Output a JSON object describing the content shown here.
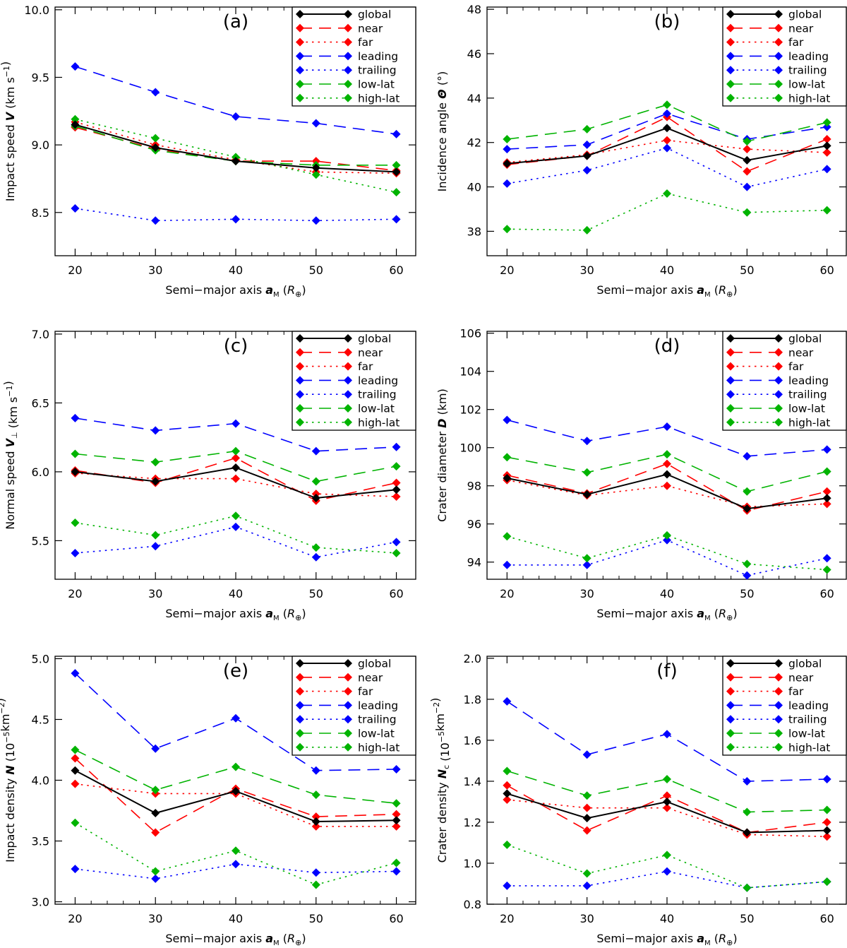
{
  "figure": {
    "x_values": [
      20,
      30,
      40,
      50,
      60
    ]
  },
  "series_styles": [
    {
      "key": "global",
      "color": "#000000",
      "dash": "solid"
    },
    {
      "key": "near",
      "color": "#ff0000",
      "dash": "dashed"
    },
    {
      "key": "far",
      "color": "#ff0000",
      "dash": "dotted"
    },
    {
      "key": "leading",
      "color": "#0000ff",
      "dash": "dashed"
    },
    {
      "key": "trailing",
      "color": "#0000ff",
      "dash": "dotted"
    },
    {
      "key": "low-lat",
      "color": "#00b300",
      "dash": "dashed"
    },
    {
      "key": "high-lat",
      "color": "#00b300",
      "dash": "dotted"
    }
  ],
  "chart_data": [
    {
      "type": "line",
      "panel": "(a)",
      "xlabel": {
        "main": "Semi−major axis ",
        "var": "a",
        "sub": "M",
        "unit_open": " (",
        "unit_var": "R",
        "unit_sub": "⊕",
        "unit_close": ")"
      },
      "ylabel": {
        "pre": "Impact speed ",
        "var": "V",
        "post": " (km s",
        "sup": "−1",
        "post2": ")"
      },
      "xlim": [
        17.5,
        62.5
      ],
      "ylim": [
        8.18,
        10.02
      ],
      "xticks": [
        "20",
        "30",
        "40",
        "50",
        "60"
      ],
      "yticks": [
        {
          "v": 8.5,
          "label": "8.5"
        },
        {
          "v": 9.0,
          "label": "9.0"
        },
        {
          "v": 9.5,
          "label": "9.5"
        },
        {
          "v": 10.0,
          "label": "10.0"
        }
      ],
      "x": [
        20,
        30,
        40,
        50,
        60
      ],
      "series": [
        {
          "name": "global",
          "values": [
            9.15,
            8.98,
            8.88,
            8.83,
            8.8
          ]
        },
        {
          "name": "near",
          "values": [
            9.13,
            8.97,
            8.88,
            8.88,
            8.81
          ]
        },
        {
          "name": "far",
          "values": [
            9.17,
            9.0,
            8.89,
            8.8,
            8.79
          ]
        },
        {
          "name": "leading",
          "values": [
            9.58,
            9.39,
            9.21,
            9.16,
            9.08
          ]
        },
        {
          "name": "trailing",
          "values": [
            8.53,
            8.44,
            8.45,
            8.44,
            8.45
          ]
        },
        {
          "name": "low-lat",
          "values": [
            9.14,
            8.96,
            8.88,
            8.85,
            8.85
          ]
        },
        {
          "name": "high-lat",
          "values": [
            9.19,
            9.05,
            8.91,
            8.78,
            8.65
          ]
        }
      ]
    },
    {
      "type": "line",
      "panel": "(b)",
      "xlabel": {
        "main": "Semi−major axis ",
        "var": "a",
        "sub": "M",
        "unit_open": " (",
        "unit_var": "R",
        "unit_sub": "⊕",
        "unit_close": ")"
      },
      "ylabel": {
        "pre": "Incidence angle ",
        "var": "Θ",
        "post": " (°)",
        "sup": "",
        "post2": ""
      },
      "xlim": [
        17.5,
        62.5
      ],
      "ylim": [
        36.9,
        48.1
      ],
      "xticks": [
        "20",
        "30",
        "40",
        "50",
        "60"
      ],
      "yticks": [
        {
          "v": 38,
          "label": "38"
        },
        {
          "v": 40,
          "label": "40"
        },
        {
          "v": 42,
          "label": "42"
        },
        {
          "v": 44,
          "label": "44"
        },
        {
          "v": 46,
          "label": "46"
        },
        {
          "v": 48,
          "label": "48"
        }
      ],
      "x": [
        20,
        30,
        40,
        50,
        60
      ],
      "series": [
        {
          "name": "global",
          "values": [
            41.05,
            41.4,
            42.65,
            41.2,
            41.85
          ]
        },
        {
          "name": "near",
          "values": [
            41.0,
            41.4,
            43.15,
            40.7,
            42.15
          ]
        },
        {
          "name": "far",
          "values": [
            41.1,
            41.45,
            42.1,
            41.7,
            41.55
          ]
        },
        {
          "name": "leading",
          "values": [
            41.7,
            41.9,
            43.3,
            42.15,
            42.7
          ]
        },
        {
          "name": "trailing",
          "values": [
            40.15,
            40.75,
            41.75,
            40.0,
            40.8
          ]
        },
        {
          "name": "low-lat",
          "values": [
            42.15,
            42.6,
            43.7,
            42.05,
            42.9
          ]
        },
        {
          "name": "high-lat",
          "values": [
            38.1,
            38.05,
            39.7,
            38.85,
            38.95
          ]
        }
      ]
    },
    {
      "type": "line",
      "panel": "(c)",
      "xlabel": {
        "main": "Semi−major axis ",
        "var": "a",
        "sub": "M",
        "unit_open": " (",
        "unit_var": "R",
        "unit_sub": "⊕",
        "unit_close": ")"
      },
      "ylabel": {
        "pre": "Normal speed ",
        "var": "V",
        "varsub": "⊥",
        "post": " (km s",
        "sup": "−1",
        "post2": ")"
      },
      "xlim": [
        17.5,
        62.5
      ],
      "ylim": [
        5.22,
        7.02
      ],
      "xticks": [
        "20",
        "30",
        "40",
        "50",
        "60"
      ],
      "yticks": [
        {
          "v": 5.5,
          "label": "5.5"
        },
        {
          "v": 6.0,
          "label": "6.0"
        },
        {
          "v": 6.5,
          "label": "6.5"
        },
        {
          "v": 7.0,
          "label": "7.0"
        }
      ],
      "x": [
        20,
        30,
        40,
        50,
        60
      ],
      "series": [
        {
          "name": "global",
          "values": [
            6.0,
            5.93,
            6.03,
            5.81,
            5.87
          ]
        },
        {
          "name": "near",
          "values": [
            6.01,
            5.92,
            6.1,
            5.79,
            5.92
          ]
        },
        {
          "name": "far",
          "values": [
            5.99,
            5.95,
            5.95,
            5.84,
            5.82
          ]
        },
        {
          "name": "leading",
          "values": [
            6.39,
            6.3,
            6.35,
            6.15,
            6.18
          ]
        },
        {
          "name": "trailing",
          "values": [
            5.41,
            5.46,
            5.6,
            5.38,
            5.49
          ]
        },
        {
          "name": "low-lat",
          "values": [
            6.13,
            6.07,
            6.15,
            5.93,
            6.04
          ]
        },
        {
          "name": "high-lat",
          "values": [
            5.63,
            5.54,
            5.68,
            5.45,
            5.41
          ]
        }
      ]
    },
    {
      "type": "line",
      "panel": "(d)",
      "xlabel": {
        "main": "Semi−major axis ",
        "var": "a",
        "sub": "M",
        "unit_open": " (",
        "unit_var": "R",
        "unit_sub": "⊕",
        "unit_close": ")"
      },
      "ylabel": {
        "pre": "Crater diameter ",
        "var": "D",
        "post": " (km)",
        "sup": "",
        "post2": ""
      },
      "xlim": [
        17.5,
        62.5
      ],
      "ylim": [
        93.1,
        106.1
      ],
      "xticks": [
        "20",
        "30",
        "40",
        "50",
        "60"
      ],
      "yticks": [
        {
          "v": 94,
          "label": "94"
        },
        {
          "v": 96,
          "label": "96"
        },
        {
          "v": 98,
          "label": "98"
        },
        {
          "v": 100,
          "label": "100"
        },
        {
          "v": 102,
          "label": "102"
        },
        {
          "v": 104,
          "label": "104"
        },
        {
          "v": 106,
          "label": "106"
        }
      ],
      "x": [
        20,
        30,
        40,
        50,
        60
      ],
      "series": [
        {
          "name": "global",
          "values": [
            98.4,
            97.55,
            98.6,
            96.8,
            97.35
          ]
        },
        {
          "name": "near",
          "values": [
            98.55,
            97.6,
            99.15,
            96.7,
            97.7
          ]
        },
        {
          "name": "far",
          "values": [
            98.3,
            97.5,
            98.0,
            96.9,
            97.05
          ]
        },
        {
          "name": "leading",
          "values": [
            101.45,
            100.35,
            101.1,
            99.55,
            99.9
          ]
        },
        {
          "name": "trailing",
          "values": [
            93.85,
            93.85,
            95.15,
            93.3,
            94.2
          ]
        },
        {
          "name": "low-lat",
          "values": [
            99.5,
            98.7,
            99.65,
            97.7,
            98.75
          ]
        },
        {
          "name": "high-lat",
          "values": [
            95.35,
            94.2,
            95.4,
            93.9,
            93.6
          ]
        }
      ]
    },
    {
      "type": "line",
      "panel": "(e)",
      "xlabel": {
        "main": "Semi−major axis ",
        "var": "a",
        "sub": "M",
        "unit_open": " (",
        "unit_var": "R",
        "unit_sub": "⊕",
        "unit_close": ")"
      },
      "ylabel": {
        "pre": "Impact density ",
        "var": "N",
        "post": " (10",
        "sup": "−5",
        "post2": "km",
        "sup2": "−2",
        "post3": ")"
      },
      "xlim": [
        17.5,
        62.5
      ],
      "ylim": [
        2.98,
        5.02
      ],
      "xticks": [
        "20",
        "30",
        "40",
        "50",
        "60"
      ],
      "yticks": [
        {
          "v": 3.0,
          "label": "3.0"
        },
        {
          "v": 3.5,
          "label": "3.5"
        },
        {
          "v": 4.0,
          "label": "4.0"
        },
        {
          "v": 4.5,
          "label": "4.5"
        },
        {
          "v": 5.0,
          "label": "5.0"
        }
      ],
      "x": [
        20,
        30,
        40,
        50,
        60
      ],
      "series": [
        {
          "name": "global",
          "values": [
            4.08,
            3.73,
            3.91,
            3.66,
            3.67
          ]
        },
        {
          "name": "near",
          "values": [
            4.18,
            3.57,
            3.93,
            3.7,
            3.72
          ]
        },
        {
          "name": "far",
          "values": [
            3.97,
            3.89,
            3.89,
            3.62,
            3.62
          ]
        },
        {
          "name": "leading",
          "values": [
            4.88,
            4.26,
            4.51,
            4.08,
            4.09
          ]
        },
        {
          "name": "trailing",
          "values": [
            3.27,
            3.19,
            3.31,
            3.24,
            3.25
          ]
        },
        {
          "name": "low-lat",
          "values": [
            4.25,
            3.92,
            4.11,
            3.88,
            3.81
          ]
        },
        {
          "name": "high-lat",
          "values": [
            3.65,
            3.25,
            3.42,
            3.14,
            3.32
          ]
        }
      ]
    },
    {
      "type": "line",
      "panel": "(f)",
      "xlabel": {
        "main": "Semi−major axis ",
        "var": "a",
        "sub": "M",
        "unit_open": " (",
        "unit_var": "R",
        "unit_sub": "⊕",
        "unit_close": ")"
      },
      "ylabel": {
        "pre": "Crater density ",
        "var": "N",
        "varsub": "c",
        "post": " (10",
        "sup": "−5",
        "post2": "km",
        "sup2": "−2",
        "post3": ")"
      },
      "xlim": [
        17.5,
        62.5
      ],
      "ylim": [
        0.8,
        2.01
      ],
      "xticks": [
        "20",
        "30",
        "40",
        "50",
        "60"
      ],
      "yticks": [
        {
          "v": 0.8,
          "label": "0.8"
        },
        {
          "v": 1.0,
          "label": "1.0"
        },
        {
          "v": 1.2,
          "label": "1.2"
        },
        {
          "v": 1.4,
          "label": "1.4"
        },
        {
          "v": 1.6,
          "label": "1.6"
        },
        {
          "v": 1.8,
          "label": "1.8"
        },
        {
          "v": 2.0,
          "label": "2.0"
        }
      ],
      "x": [
        20,
        30,
        40,
        50,
        60
      ],
      "series": [
        {
          "name": "global",
          "values": [
            1.34,
            1.22,
            1.3,
            1.15,
            1.16
          ]
        },
        {
          "name": "near",
          "values": [
            1.38,
            1.16,
            1.33,
            1.15,
            1.2
          ]
        },
        {
          "name": "far",
          "values": [
            1.31,
            1.27,
            1.27,
            1.14,
            1.13
          ]
        },
        {
          "name": "leading",
          "values": [
            1.79,
            1.53,
            1.63,
            1.4,
            1.41
          ]
        },
        {
          "name": "trailing",
          "values": [
            0.89,
            0.89,
            0.96,
            0.88,
            0.91
          ]
        },
        {
          "name": "low-lat",
          "values": [
            1.45,
            1.33,
            1.41,
            1.25,
            1.26
          ]
        },
        {
          "name": "high-lat",
          "values": [
            1.09,
            0.95,
            1.04,
            0.88,
            0.91
          ]
        }
      ]
    }
  ]
}
